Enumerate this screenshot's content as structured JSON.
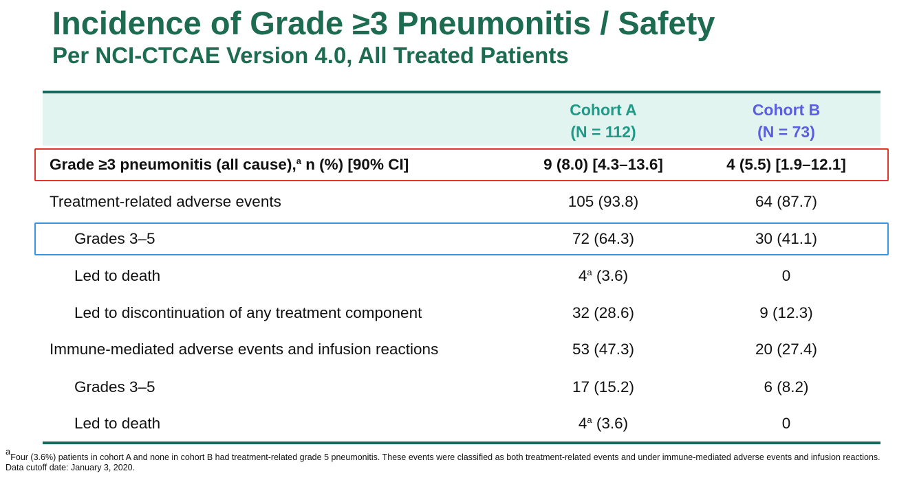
{
  "header": {
    "title": "Incidence of Grade ≥3 Pneumonitis / Safety",
    "subtitle": "Per NCI-CTCAE Version 4.0, All Treated Patients"
  },
  "table": {
    "columns": [
      {
        "name": "Cohort A",
        "n": "(N = 112)",
        "color": "#1f9a86"
      },
      {
        "name": "Cohort B",
        "n": "(N = 73)",
        "color": "#5a5ee0"
      }
    ],
    "rows": [
      {
        "label": [
          "Grade ≥3 pneumonitis (all cause),",
          {
            "sup": "a"
          },
          " n (%) [90% CI]"
        ],
        "cells": [
          [
            "9 (8.0) [4.3–13.6]"
          ],
          [
            "4 (5.5) [1.9–12.1]"
          ]
        ],
        "bold": true,
        "highlight": "#e0362c"
      },
      {
        "label": [
          "Treatment-related adverse events"
        ],
        "cells": [
          [
            "105 (93.8)"
          ],
          [
            "64 (87.7)"
          ]
        ]
      },
      {
        "label": [
          "Grades 3–5"
        ],
        "cells": [
          [
            "72 (64.3)"
          ],
          [
            "30 (41.1)"
          ]
        ],
        "indent": true,
        "highlight": "#3a96e0"
      },
      {
        "label": [
          "Led to death"
        ],
        "cells": [
          [
            "4",
            {
              "sup": "a"
            },
            " (3.6)"
          ],
          [
            "0"
          ]
        ],
        "indent": true
      },
      {
        "label": [
          "Led to discontinuation of any treatment component"
        ],
        "cells": [
          [
            "32 (28.6)"
          ],
          [
            "9 (12.3)"
          ]
        ],
        "indent": true
      },
      {
        "label": [
          "Immune-mediated adverse events and infusion reactions"
        ],
        "cells": [
          [
            "53 (47.3)"
          ],
          [
            "20 (27.4)"
          ]
        ]
      },
      {
        "label": [
          "Grades 3–5"
        ],
        "cells": [
          [
            "17 (15.2)"
          ],
          [
            "6 (8.2)"
          ]
        ],
        "indent": true
      },
      {
        "label": [
          "Led to death"
        ],
        "cells": [
          [
            "4",
            {
              "sup": "a"
            },
            " (3.6)"
          ],
          [
            "0"
          ]
        ],
        "indent": true
      }
    ]
  },
  "footnote": [
    [
      {
        "sup": "a"
      },
      "Four (3.6%) patients in cohort A and none in cohort B had treatment-related grade 5 pneumonitis. These events were classified as both treatment-related events and under immune-mediated adverse events and infusion reactions."
    ],
    [
      "Data cutoff date: January 3, 2020."
    ]
  ]
}
